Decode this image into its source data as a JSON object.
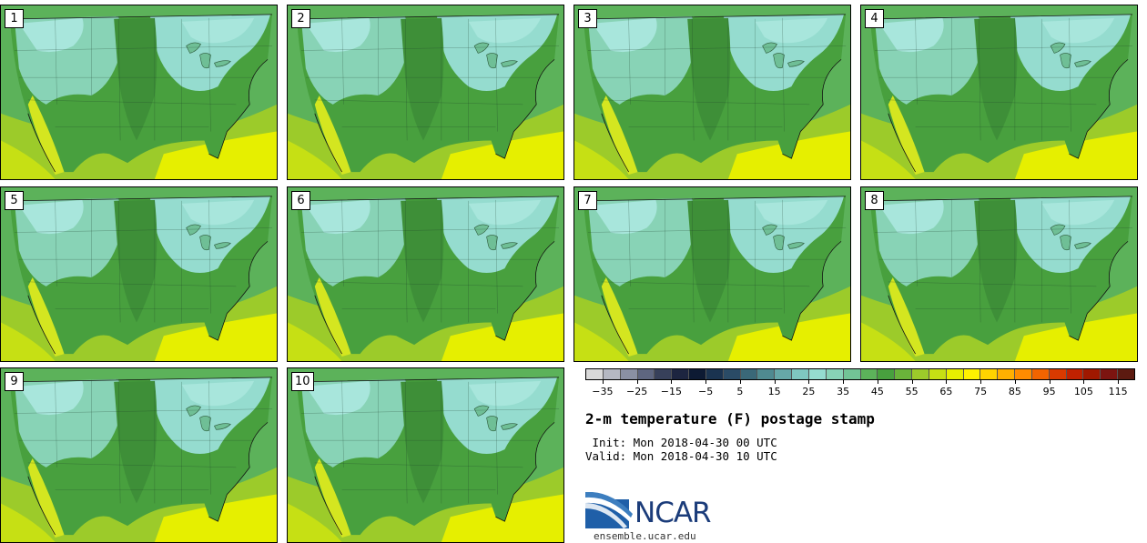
{
  "panels": [
    {
      "label": "1"
    },
    {
      "label": "2"
    },
    {
      "label": "3"
    },
    {
      "label": "4"
    },
    {
      "label": "5"
    },
    {
      "label": "6"
    },
    {
      "label": "7"
    },
    {
      "label": "8"
    },
    {
      "label": "9"
    },
    {
      "label": "10"
    }
  ],
  "colorbar": {
    "colors": [
      "#d9d9d9",
      "#b5b8c2",
      "#8a90a3",
      "#5e6680",
      "#37405a",
      "#1d2540",
      "#0d1a33",
      "#1a3350",
      "#2a4b66",
      "#3a6878",
      "#4f8a90",
      "#66a8a8",
      "#7fc7c0",
      "#95dccf",
      "#88d3b6",
      "#72c496",
      "#5cb25a",
      "#48a03e",
      "#6ab33a",
      "#9ccb2a",
      "#c6e014",
      "#e6ef00",
      "#fff100",
      "#ffd400",
      "#ffb000",
      "#ff8c00",
      "#f26400",
      "#d93a00",
      "#c02100",
      "#a01800",
      "#7c1410",
      "#5c1a10"
    ],
    "ticks": [
      "−35",
      "−25",
      "−15",
      "−5",
      "5",
      "15",
      "25",
      "35",
      "45",
      "55",
      "65",
      "75",
      "85",
      "95",
      "105",
      "115"
    ],
    "tick_values": [
      -35,
      -25,
      -15,
      -5,
      5,
      15,
      25,
      35,
      45,
      55,
      65,
      75,
      85,
      95,
      105,
      115
    ],
    "range": [
      -40,
      120
    ]
  },
  "title": "2-m temperature (F) postage stamp",
  "init": " Init: Mon 2018-04-30 00 UTC",
  "valid": "Valid: Mon 2018-04-30 10 UTC",
  "logo": {
    "name": "ncar-logo",
    "text": "NCAR",
    "color": "#1b3c7a",
    "accent": "#3d7ebf"
  },
  "url": "ensemble.ucar.edu"
}
